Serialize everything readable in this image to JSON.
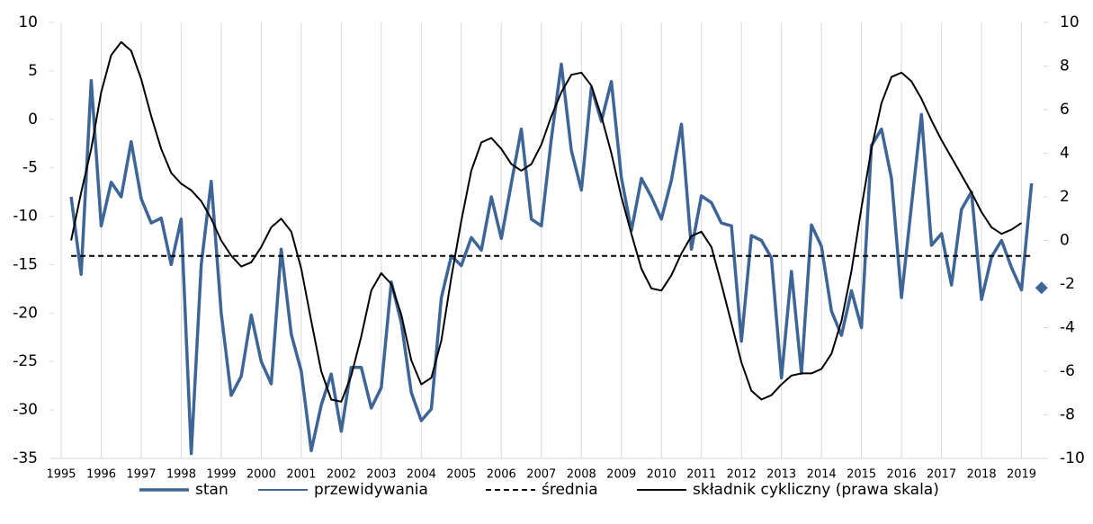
{
  "chart_data": {
    "type": "line",
    "x": [
      1995.25,
      1995.5,
      1995.75,
      1996,
      1996.25,
      1996.5,
      1996.75,
      1997,
      1997.25,
      1997.5,
      1997.75,
      1998,
      1998.25,
      1998.5,
      1998.75,
      1999,
      1999.25,
      1999.5,
      1999.75,
      2000,
      2000.25,
      2000.5,
      2000.75,
      2001,
      2001.25,
      2001.5,
      2001.75,
      2002,
      2002.25,
      2002.5,
      2002.75,
      2003,
      2003.25,
      2003.5,
      2003.75,
      2004,
      2004.25,
      2004.5,
      2004.75,
      2005,
      2005.25,
      2005.5,
      2005.75,
      2006,
      2006.25,
      2006.5,
      2006.75,
      2007,
      2007.25,
      2007.5,
      2007.75,
      2008,
      2008.25,
      2008.5,
      2008.75,
      2009,
      2009.25,
      2009.5,
      2009.75,
      2010,
      2010.25,
      2010.5,
      2010.75,
      2011,
      2011.25,
      2011.5,
      2011.75,
      2012,
      2012.25,
      2012.5,
      2012.75,
      2013,
      2013.25,
      2013.5,
      2013.75,
      2014,
      2014.25,
      2014.5,
      2014.75,
      2015,
      2015.25,
      2015.5,
      2015.75,
      2016,
      2016.25,
      2016.5,
      2016.75,
      2017,
      2017.25,
      2017.5,
      2017.75,
      2018,
      2018.25,
      2018.5,
      2018.75,
      2019,
      2019.25,
      2019.5
    ],
    "series": [
      {
        "name": "stan",
        "color": "#3d6596",
        "values": [
          -8,
          -16,
          4,
          -11,
          -6.5,
          -8,
          -2.3,
          -8.2,
          -10.7,
          -10.2,
          -15,
          -10.3,
          -34.5,
          -15,
          -6.4,
          -20,
          -28.5,
          -26.5,
          -20.2,
          -25,
          -27.3,
          -13.4,
          -22.2,
          -26,
          -34.2,
          -29.5,
          -26.3,
          -32.2,
          -25.6,
          -25.6,
          -29.8,
          -27.7,
          -16.8,
          -21,
          -28.2,
          -31.1,
          -29.9,
          -18.4,
          -14.1,
          -15.1,
          -12.2,
          -13.5,
          -8,
          -12.3,
          -6.6,
          -1,
          -10.3,
          -11,
          -2,
          5.7,
          -3.2,
          -7.3,
          3.3,
          -0.2,
          3.9,
          -6,
          -11.5,
          -6.1,
          -8,
          -10.3,
          -6.3,
          -0.5,
          -13.4,
          -7.9,
          -8.6,
          -10.7,
          -11,
          -22.9,
          -12,
          -12.5,
          -14.3,
          -26.7,
          -15.7,
          -26.2,
          -10.9,
          -13.1,
          -19.8,
          -22.3,
          -17.7,
          -21.5,
          -2.7,
          -1,
          -6.1,
          -18.4,
          -8.9,
          0.5,
          -13,
          -11.8,
          -17.1,
          -9.3,
          -7.5,
          -18.6,
          -14.2,
          -12.5,
          -15.3,
          -17.6,
          -6.6,
          null
        ]
      },
      {
        "name": "przewidywania",
        "color": "#3d6596",
        "marker": "diamond",
        "values": [
          null,
          null,
          null,
          null,
          null,
          null,
          null,
          null,
          null,
          null,
          null,
          null,
          null,
          null,
          null,
          null,
          null,
          null,
          null,
          null,
          null,
          null,
          null,
          null,
          null,
          null,
          null,
          null,
          null,
          null,
          null,
          null,
          null,
          null,
          null,
          null,
          null,
          null,
          null,
          null,
          null,
          null,
          null,
          null,
          null,
          null,
          null,
          null,
          null,
          null,
          null,
          null,
          null,
          null,
          null,
          null,
          null,
          null,
          null,
          null,
          null,
          null,
          null,
          null,
          null,
          null,
          null,
          null,
          null,
          null,
          null,
          null,
          null,
          null,
          null,
          null,
          null,
          null,
          null,
          null,
          null,
          null,
          null,
          null,
          null,
          null,
          null,
          null,
          null,
          null,
          null,
          null,
          null,
          null,
          null,
          null,
          null,
          -17.4
        ]
      },
      {
        "name": "średnia",
        "color": "#000000",
        "line_style": "dashed",
        "values": [
          -14.1,
          -14.1,
          -14.1,
          -14.1,
          -14.1,
          -14.1,
          -14.1,
          -14.1,
          -14.1,
          -14.1,
          -14.1,
          -14.1,
          -14.1,
          -14.1,
          -14.1,
          -14.1,
          -14.1,
          -14.1,
          -14.1,
          -14.1,
          -14.1,
          -14.1,
          -14.1,
          -14.1,
          -14.1,
          -14.1,
          -14.1,
          -14.1,
          -14.1,
          -14.1,
          -14.1,
          -14.1,
          -14.1,
          -14.1,
          -14.1,
          -14.1,
          -14.1,
          -14.1,
          -14.1,
          -14.1,
          -14.1,
          -14.1,
          -14.1,
          -14.1,
          -14.1,
          -14.1,
          -14.1,
          -14.1,
          -14.1,
          -14.1,
          -14.1,
          -14.1,
          -14.1,
          -14.1,
          -14.1,
          -14.1,
          -14.1,
          -14.1,
          -14.1,
          -14.1,
          -14.1,
          -14.1,
          -14.1,
          -14.1,
          -14.1,
          -14.1,
          -14.1,
          -14.1,
          -14.1,
          -14.1,
          -14.1,
          -14.1,
          -14.1,
          -14.1,
          -14.1,
          -14.1,
          -14.1,
          -14.1,
          -14.1,
          -14.1,
          -14.1,
          -14.1,
          -14.1,
          -14.1,
          -14.1,
          -14.1,
          -14.1,
          -14.1,
          -14.1,
          -14.1,
          -14.1,
          -14.1,
          -14.1,
          -14.1,
          -14.1,
          -14.1,
          -14.1,
          null
        ]
      },
      {
        "name": "składnik cykliczny (prawa skala)",
        "color": "#000000",
        "axis": "y2",
        "values": [
          0,
          2.2,
          4.2,
          6.8,
          8.5,
          9.1,
          8.7,
          7.4,
          5.7,
          4.2,
          3.1,
          2.6,
          2.3,
          1.8,
          1,
          0,
          -0.7,
          -1.2,
          -1,
          -0.3,
          0.6,
          1,
          0.4,
          -1.3,
          -3.7,
          -6,
          -7.3,
          -7.4,
          -6.2,
          -4.4,
          -2.3,
          -1.5,
          -2,
          -3.4,
          -5.5,
          -6.6,
          -6.3,
          -4.6,
          -1.7,
          0.9,
          3.2,
          4.5,
          4.7,
          4.2,
          3.5,
          3.2,
          3.5,
          4.4,
          5.7,
          6.8,
          7.6,
          7.7,
          7.1,
          5.7,
          4,
          2,
          0.3,
          -1.3,
          -2.2,
          -2.3,
          -1.6,
          -0.6,
          0.2,
          0.4,
          -0.3,
          -2,
          -3.8,
          -5.6,
          -6.9,
          -7.3,
          -7.1,
          -6.6,
          -6.2,
          -6.1,
          -6.1,
          -5.9,
          -5.2,
          -3.7,
          -1.4,
          1.5,
          4.2,
          6.3,
          7.5,
          7.7,
          7.3,
          6.5,
          5.5,
          4.6,
          3.8,
          3,
          2.2,
          1.3,
          0.6,
          0.3,
          0.5,
          0.8,
          null,
          null
        ]
      }
    ],
    "xlim": [
      1994.82,
      2019.55
    ],
    "xticks": [
      1995,
      1996,
      1997,
      1998,
      1999,
      2000,
      2001,
      2002,
      2003,
      2004,
      2005,
      2006,
      2007,
      2008,
      2009,
      2010,
      2011,
      2012,
      2013,
      2014,
      2015,
      2016,
      2017,
      2018,
      2019
    ],
    "ylim": [
      -35,
      10
    ],
    "yticks": [
      -35,
      -30,
      -25,
      -20,
      -15,
      -10,
      -5,
      0,
      5,
      10
    ],
    "y2lim": [
      -10,
      10
    ],
    "y2ticks": [
      -10,
      -8,
      -6,
      -4,
      -2,
      0,
      2,
      4,
      6,
      8,
      10
    ],
    "xgrid": true,
    "legend": "bottom"
  }
}
